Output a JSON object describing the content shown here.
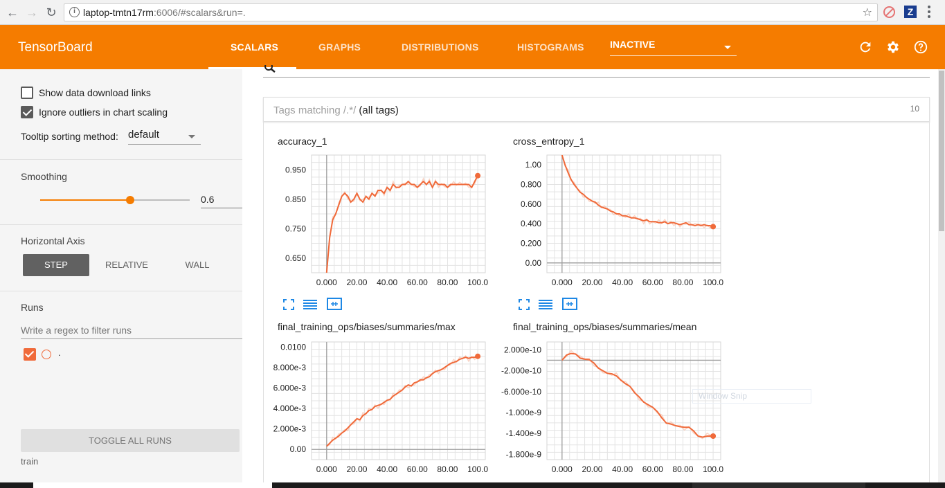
{
  "browser": {
    "url_host": "laptop-tmtn17rm",
    "url_rest": ":6006/#scalars&run=."
  },
  "toolbar": {
    "brand": "TensorBoard",
    "tabs": [
      {
        "label": "SCALARS",
        "active": true
      },
      {
        "label": "GRAPHS",
        "active": false
      },
      {
        "label": "DISTRIBUTIONS",
        "active": false
      },
      {
        "label": "HISTOGRAMS",
        "active": false
      }
    ],
    "inactive_select": "INACTIVE",
    "accent_color": "#f57c00"
  },
  "sidebar": {
    "show_download_links": {
      "label": "Show data download links",
      "checked": false
    },
    "ignore_outliers": {
      "label": "Ignore outliers in chart scaling",
      "checked": true
    },
    "tooltip_sorting": {
      "label": "Tooltip sorting method:",
      "value": "default"
    },
    "smoothing": {
      "title": "Smoothing",
      "value": "0.6",
      "fraction": 0.6
    },
    "horizontal_axis": {
      "title": "Horizontal Axis",
      "options": [
        "STEP",
        "RELATIVE",
        "WALL"
      ],
      "selected": "STEP"
    },
    "runs": {
      "title": "Runs",
      "filter_placeholder": "Write a regex to filter runs",
      "items": [
        {
          "name": ".",
          "checked": true,
          "color": "#f06a3a"
        }
      ],
      "toggle_all_label": "TOGGLE ALL RUNS",
      "footer": "train"
    }
  },
  "main": {
    "tags_prefix": "Tags matching ",
    "tags_regex": "/.*/",
    "tags_suffix": " (all tags)",
    "tags_count": "10",
    "snip_text": "Window Snip"
  },
  "chart_data": [
    {
      "type": "line",
      "title": "accuracy_1",
      "ylim": [
        0.6,
        1.0
      ],
      "xlim": [
        -10,
        105
      ],
      "x_ticks": [
        "0.000",
        "20.00",
        "40.00",
        "60.00",
        "80.00",
        "100.0"
      ],
      "y_ticks": [
        0.95,
        0.85,
        0.75,
        0.65
      ],
      "y_tick_labels": [
        "0.950",
        "0.850",
        "0.750",
        "0.650"
      ],
      "series": [
        {
          "x": [
            0,
            2,
            4,
            6,
            8,
            10,
            12,
            14,
            16,
            18,
            20,
            22,
            24,
            26,
            28,
            30,
            32,
            34,
            36,
            38,
            40,
            42,
            44,
            46,
            48,
            50,
            52,
            54,
            56,
            58,
            60,
            62,
            64,
            66,
            68,
            70,
            72,
            74,
            76,
            78,
            80,
            82,
            84,
            86,
            88,
            90,
            92,
            94,
            96,
            98,
            100
          ],
          "y": [
            0.6,
            0.72,
            0.78,
            0.8,
            0.83,
            0.86,
            0.87,
            0.86,
            0.84,
            0.85,
            0.87,
            0.85,
            0.84,
            0.86,
            0.85,
            0.87,
            0.86,
            0.88,
            0.88,
            0.87,
            0.89,
            0.88,
            0.9,
            0.89,
            0.89,
            0.9,
            0.9,
            0.91,
            0.9,
            0.9,
            0.89,
            0.9,
            0.91,
            0.9,
            0.91,
            0.89,
            0.91,
            0.9,
            0.9,
            0.9,
            0.89,
            0.9,
            0.9,
            0.9,
            0.9,
            0.9,
            0.9,
            0.9,
            0.89,
            0.91,
            0.93
          ]
        }
      ]
    },
    {
      "type": "line",
      "title": "cross_entropy_1",
      "ylim": [
        -0.1,
        1.1
      ],
      "xlim": [
        -10,
        105
      ],
      "x_ticks": [
        "0.000",
        "20.00",
        "40.00",
        "60.00",
        "80.00",
        "100.0"
      ],
      "y_ticks": [
        1.0,
        0.8,
        0.6,
        0.4,
        0.2,
        0.0
      ],
      "y_tick_labels": [
        "1.00",
        "0.800",
        "0.600",
        "0.400",
        "0.200",
        "0.00"
      ],
      "series": [
        {
          "x": [
            0,
            2,
            4,
            6,
            8,
            10,
            12,
            14,
            16,
            18,
            20,
            22,
            24,
            26,
            28,
            30,
            32,
            34,
            36,
            38,
            40,
            42,
            44,
            46,
            48,
            50,
            52,
            54,
            56,
            58,
            60,
            62,
            64,
            66,
            68,
            70,
            72,
            74,
            76,
            78,
            80,
            82,
            84,
            86,
            88,
            90,
            92,
            94,
            96,
            98,
            100
          ],
          "y": [
            1.1,
            1.0,
            0.92,
            0.85,
            0.8,
            0.76,
            0.72,
            0.7,
            0.67,
            0.65,
            0.63,
            0.62,
            0.59,
            0.57,
            0.56,
            0.55,
            0.53,
            0.52,
            0.5,
            0.5,
            0.48,
            0.48,
            0.47,
            0.46,
            0.46,
            0.45,
            0.44,
            0.43,
            0.44,
            0.42,
            0.42,
            0.42,
            0.41,
            0.41,
            0.42,
            0.4,
            0.41,
            0.41,
            0.4,
            0.39,
            0.4,
            0.41,
            0.39,
            0.39,
            0.38,
            0.39,
            0.38,
            0.39,
            0.38,
            0.38,
            0.37
          ]
        }
      ]
    },
    {
      "type": "line",
      "title": "final_training_ops/biases/summaries/max",
      "ylim": [
        -0.001,
        0.0105
      ],
      "xlim": [
        -10,
        105
      ],
      "x_ticks": [
        "0.000",
        "20.00",
        "40.00",
        "60.00",
        "80.00",
        "100.0"
      ],
      "y_ticks": [
        0.01,
        0.008,
        0.006,
        0.004,
        0.002,
        0.0
      ],
      "y_tick_labels": [
        "0.0100",
        "8.000e-3",
        "6.000e-3",
        "4.000e-3",
        "2.000e-3",
        "0.00"
      ],
      "series": [
        {
          "x": [
            0,
            2,
            4,
            6,
            8,
            10,
            12,
            14,
            16,
            18,
            20,
            22,
            24,
            26,
            28,
            30,
            32,
            34,
            36,
            38,
            40,
            42,
            44,
            46,
            48,
            50,
            52,
            54,
            56,
            58,
            60,
            62,
            64,
            66,
            68,
            70,
            72,
            74,
            76,
            78,
            80,
            82,
            84,
            86,
            88,
            90,
            92,
            94,
            96,
            98,
            100
          ],
          "y": [
            0.0003,
            0.0006,
            0.0009,
            0.0011,
            0.0013,
            0.0016,
            0.0018,
            0.0021,
            0.0024,
            0.0027,
            0.003,
            0.0029,
            0.0033,
            0.0035,
            0.0038,
            0.0039,
            0.0042,
            0.0043,
            0.0044,
            0.0046,
            0.0048,
            0.0049,
            0.0052,
            0.0054,
            0.0056,
            0.0058,
            0.0061,
            0.0063,
            0.0062,
            0.0065,
            0.0066,
            0.0068,
            0.0068,
            0.007,
            0.0071,
            0.0074,
            0.0076,
            0.0077,
            0.0078,
            0.008,
            0.0082,
            0.0084,
            0.0085,
            0.0086,
            0.0088,
            0.0089,
            0.009,
            0.0089,
            0.009,
            0.009,
            0.0091
          ]
        }
      ]
    },
    {
      "type": "line",
      "title": "final_training_ops/biases/summaries/mean",
      "ylim": [
        -1.9e-09,
        3.5e-10
      ],
      "xlim": [
        -10,
        105
      ],
      "x_ticks": [
        "0.000",
        "20.00",
        "40.00",
        "60.00",
        "80.00",
        "100.0"
      ],
      "y_ticks": [
        2e-10,
        -2e-10,
        -6e-10,
        -1e-09,
        -1.4e-09,
        -1.8e-09
      ],
      "y_tick_labels": [
        "2.000e-10",
        "-2.000e-10",
        "-6.000e-10",
        "-1.000e-9",
        "-1.400e-9",
        "-1.800e-9"
      ],
      "series": [
        {
          "x": [
            0,
            3,
            6,
            9,
            12,
            15,
            18,
            21,
            24,
            27,
            30,
            33,
            36,
            39,
            42,
            45,
            48,
            51,
            54,
            57,
            60,
            63,
            66,
            69,
            72,
            75,
            78,
            81,
            84,
            87,
            90,
            93,
            96,
            100
          ],
          "y": [
            0.0,
            1e-10,
            1.3e-10,
            1.2e-10,
            4e-11,
            2e-11,
            1e-11,
            -5e-11,
            -1.5e-10,
            -2e-10,
            -2.5e-10,
            -2.6e-10,
            -3e-10,
            -3.8e-10,
            -4.5e-10,
            -5e-10,
            -6.2e-10,
            -7e-10,
            -8e-10,
            -8.5e-10,
            -9e-10,
            -9.8e-10,
            -1.1e-09,
            -1.2e-09,
            -1.22e-09,
            -1.25e-09,
            -1.27e-09,
            -1.28e-09,
            -1.28e-09,
            -1.35e-09,
            -1.45e-09,
            -1.47e-09,
            -1.45e-09,
            -1.45e-09
          ]
        }
      ]
    }
  ]
}
